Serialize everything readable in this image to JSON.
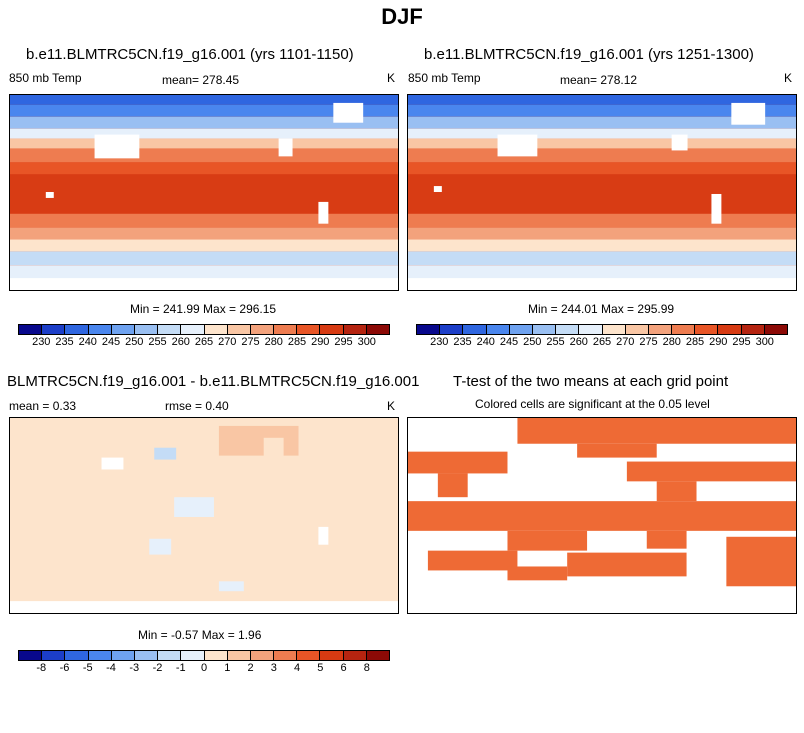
{
  "page_title": "DJF",
  "panels": [
    {
      "title": "b.e11.BLMTRC5CN.f19_g16.001 (yrs 1101-1150)",
      "left_label": "850 mb Temp",
      "center_label": "mean= 278.45",
      "right_label": "K",
      "stats": "Min = 241.99 Max = 296.15"
    },
    {
      "title": "b.e11.BLMTRC5CN.f19_g16.001 (yrs 1251-1300)",
      "left_label": "850 mb Temp",
      "center_label": "mean= 278.12",
      "right_label": "K",
      "stats": "Min = 244.01 Max = 295.99"
    },
    {
      "title": "BLMTRC5CN.f19_g16.001 - b.e11.BLMTRC5CN.f19_g16.001",
      "left_label": "mean =   0.33",
      "center_label": "rmse =   0.40",
      "right_label": "K",
      "stats": "Min =  -0.57 Max =   1.96"
    },
    {
      "title": "T-test of the two means at each grid point",
      "subtitle": "Colored cells are significant at the 0.05 level"
    }
  ],
  "colorbars": {
    "temp": {
      "colors": [
        "#08088c",
        "#1c3ec8",
        "#2f66e0",
        "#4a86ee",
        "#6ea2f0",
        "#99bff2",
        "#c4dcf6",
        "#e6f0fb",
        "#fde4cc",
        "#f9c6a4",
        "#f3a27c",
        "#ee7c50",
        "#e85526",
        "#d73a12",
        "#b52410",
        "#8c0a06"
      ],
      "labels": [
        "230",
        "235",
        "240",
        "245",
        "250",
        "255",
        "260",
        "265",
        "270",
        "275",
        "280",
        "285",
        "290",
        "295",
        "300"
      ]
    },
    "diff": {
      "colors": [
        "#08088c",
        "#1c3ec8",
        "#2f66e0",
        "#4a86ee",
        "#6ea2f0",
        "#99bff2",
        "#c4dcf6",
        "#e6f0fb",
        "#fde4cc",
        "#f9c6a4",
        "#f3a27c",
        "#ee7c50",
        "#e85526",
        "#d73a12",
        "#b52410",
        "#8c0a06"
      ],
      "labels": [
        "-8",
        "-6",
        "-5",
        "-4",
        "-3",
        "-2",
        "-1",
        "0",
        "1",
        "2",
        "3",
        "4",
        "5",
        "6",
        "8"
      ]
    }
  }
}
